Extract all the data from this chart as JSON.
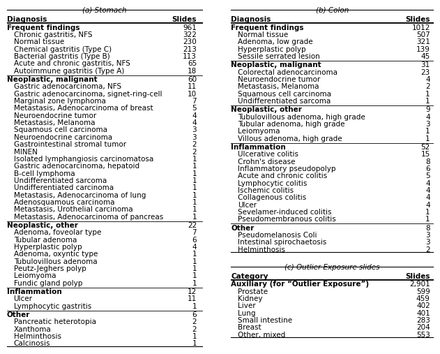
{
  "title_a": "(a) Stomach",
  "title_b": "(b) Colon",
  "title_c": "(c) Outlier Exposure slides",
  "stomach_header": [
    "Diagnosis",
    "Slides"
  ],
  "colon_header": [
    "Diagnosis",
    "Slides"
  ],
  "outlier_header": [
    "Category",
    "Slides"
  ],
  "stomach_data": [
    {
      "label": "Frequent findings",
      "value": "961",
      "indent": false,
      "bold": true,
      "separator_before": true
    },
    {
      "label": "Chronic gastritis, NFS",
      "value": "322",
      "indent": true,
      "bold": false,
      "separator_before": false
    },
    {
      "label": "Normal tissue",
      "value": "230",
      "indent": true,
      "bold": false,
      "separator_before": false
    },
    {
      "label": "Chemical gastritis (Type C)",
      "value": "213",
      "indent": true,
      "bold": false,
      "separator_before": false
    },
    {
      "label": "Bacterial gastritis (Type B)",
      "value": "113",
      "indent": true,
      "bold": false,
      "separator_before": false
    },
    {
      "label": "Acute and chronic gastritis, NFS",
      "value": "65",
      "indent": true,
      "bold": false,
      "separator_before": false
    },
    {
      "label": "Autoimmune gastritis (Type A)",
      "value": "18",
      "indent": true,
      "bold": false,
      "separator_before": false
    },
    {
      "label": "Neoplastic, malignant",
      "value": "60",
      "indent": false,
      "bold": true,
      "separator_before": true
    },
    {
      "label": "Gastric adenocarcinoma, NFS",
      "value": "11",
      "indent": true,
      "bold": false,
      "separator_before": false
    },
    {
      "label": "Gastric adenocarcinoma, signet-ring-cell",
      "value": "10",
      "indent": true,
      "bold": false,
      "separator_before": false
    },
    {
      "label": "Marginal zone lymphoma",
      "value": "7",
      "indent": true,
      "bold": false,
      "separator_before": false
    },
    {
      "label": "Metastasis, Adenocarcinoma of breast",
      "value": "5",
      "indent": true,
      "bold": false,
      "separator_before": false
    },
    {
      "label": "Neuroendocrine tumor",
      "value": "4",
      "indent": true,
      "bold": false,
      "separator_before": false
    },
    {
      "label": "Metastasis, Melanoma",
      "value": "4",
      "indent": true,
      "bold": false,
      "separator_before": false
    },
    {
      "label": "Squamous cell carcinoma",
      "value": "3",
      "indent": true,
      "bold": false,
      "separator_before": false
    },
    {
      "label": "Neuroendocrine carcinoma",
      "value": "3",
      "indent": true,
      "bold": false,
      "separator_before": false
    },
    {
      "label": "Gastrointestinal stromal tumor",
      "value": "2",
      "indent": true,
      "bold": false,
      "separator_before": false
    },
    {
      "label": "MINEN",
      "value": "2",
      "indent": true,
      "bold": false,
      "separator_before": false
    },
    {
      "label": "Isolated lymphangiosis carcinomatosa",
      "value": "1",
      "indent": true,
      "bold": false,
      "separator_before": false
    },
    {
      "label": "Gastric adenocarcinoma, hepatoid",
      "value": "1",
      "indent": true,
      "bold": false,
      "separator_before": false
    },
    {
      "label": "B-cell lymphoma",
      "value": "1",
      "indent": true,
      "bold": false,
      "separator_before": false
    },
    {
      "label": "Undifferentiated sarcoma",
      "value": "1",
      "indent": true,
      "bold": false,
      "separator_before": false
    },
    {
      "label": "Undifferentiated carcinoma",
      "value": "1",
      "indent": true,
      "bold": false,
      "separator_before": false
    },
    {
      "label": "Metastasis, Adenocarcinoma of lung",
      "value": "1",
      "indent": true,
      "bold": false,
      "separator_before": false
    },
    {
      "label": "Adenosquamous carcinoma",
      "value": "1",
      "indent": true,
      "bold": false,
      "separator_before": false
    },
    {
      "label": "Metastasis, Urothelial carcinoma",
      "value": "1",
      "indent": true,
      "bold": false,
      "separator_before": false
    },
    {
      "label": "Metastasis, Adenocarcinoma of pancreas",
      "value": "1",
      "indent": true,
      "bold": false,
      "separator_before": false
    },
    {
      "label": "Neoplastic, other",
      "value": "22",
      "indent": false,
      "bold": true,
      "separator_before": true
    },
    {
      "label": "Adenoma, foveolar type",
      "value": "7",
      "indent": true,
      "bold": false,
      "separator_before": false
    },
    {
      "label": "Tubular adenoma",
      "value": "6",
      "indent": true,
      "bold": false,
      "separator_before": false
    },
    {
      "label": "Hyperplastic polyp",
      "value": "4",
      "indent": true,
      "bold": false,
      "separator_before": false
    },
    {
      "label": "Adenoma, oxyntic type",
      "value": "1",
      "indent": true,
      "bold": false,
      "separator_before": false
    },
    {
      "label": "Tubulovillous adenoma",
      "value": "1",
      "indent": true,
      "bold": false,
      "separator_before": false
    },
    {
      "label": "Peutz-Jeghers polyp",
      "value": "1",
      "indent": true,
      "bold": false,
      "separator_before": false
    },
    {
      "label": "Leiomyoma",
      "value": "1",
      "indent": true,
      "bold": false,
      "separator_before": false
    },
    {
      "label": "Fundic gland polyp",
      "value": "1",
      "indent": true,
      "bold": false,
      "separator_before": false
    },
    {
      "label": "Inflammation",
      "value": "12",
      "indent": false,
      "bold": true,
      "separator_before": true
    },
    {
      "label": "Ulcer",
      "value": "11",
      "indent": true,
      "bold": false,
      "separator_before": false
    },
    {
      "label": "Lymphocytic gastritis",
      "value": "1",
      "indent": true,
      "bold": false,
      "separator_before": false
    },
    {
      "label": "Other",
      "value": "6",
      "indent": false,
      "bold": true,
      "separator_before": true
    },
    {
      "label": "Pancreatic heterotopia",
      "value": "2",
      "indent": true,
      "bold": false,
      "separator_before": false
    },
    {
      "label": "Xanthoma",
      "value": "2",
      "indent": true,
      "bold": false,
      "separator_before": false
    },
    {
      "label": "Helminthosis",
      "value": "1",
      "indent": true,
      "bold": false,
      "separator_before": false
    },
    {
      "label": "Calcinosis",
      "value": "1",
      "indent": true,
      "bold": false,
      "separator_before": false
    }
  ],
  "colon_data": [
    {
      "label": "Frequent findings",
      "value": "1012",
      "indent": false,
      "bold": true,
      "separator_before": true
    },
    {
      "label": "Normal tissue",
      "value": "507",
      "indent": true,
      "bold": false,
      "separator_before": false
    },
    {
      "label": "Adenoma, low grade",
      "value": "321",
      "indent": true,
      "bold": false,
      "separator_before": false
    },
    {
      "label": "Hyperplastic polyp",
      "value": "139",
      "indent": true,
      "bold": false,
      "separator_before": false
    },
    {
      "label": "Sessile serrated lesion",
      "value": "45",
      "indent": true,
      "bold": false,
      "separator_before": false
    },
    {
      "label": "Neoplastic, malignant",
      "value": "31",
      "indent": false,
      "bold": true,
      "separator_before": true
    },
    {
      "label": "Colorectal adenocarcinoma",
      "value": "23",
      "indent": true,
      "bold": false,
      "separator_before": false
    },
    {
      "label": "Neuroendocrine tumor",
      "value": "4",
      "indent": true,
      "bold": false,
      "separator_before": false
    },
    {
      "label": "Metastasis, Melanoma",
      "value": "2",
      "indent": true,
      "bold": false,
      "separator_before": false
    },
    {
      "label": "Squamous cell carcinoma",
      "value": "1",
      "indent": true,
      "bold": false,
      "separator_before": false
    },
    {
      "label": "Undifferentiated sarcoma",
      "value": "1",
      "indent": true,
      "bold": false,
      "separator_before": false
    },
    {
      "label": "Neoplastic, other",
      "value": "9",
      "indent": false,
      "bold": true,
      "separator_before": true
    },
    {
      "label": "Tubulovillous adenoma, high grade",
      "value": "4",
      "indent": true,
      "bold": false,
      "separator_before": false
    },
    {
      "label": "Tubular adenoma, high grade",
      "value": "3",
      "indent": true,
      "bold": false,
      "separator_before": false
    },
    {
      "label": "Leiomyoma",
      "value": "1",
      "indent": true,
      "bold": false,
      "separator_before": false
    },
    {
      "label": "Villous adenoma, high grade",
      "value": "1",
      "indent": true,
      "bold": false,
      "separator_before": false
    },
    {
      "label": "Inflammation",
      "value": "52",
      "indent": false,
      "bold": true,
      "separator_before": true
    },
    {
      "label": "Ulcerative colitis",
      "value": "15",
      "indent": true,
      "bold": false,
      "separator_before": false
    },
    {
      "label": "Crohn's disease",
      "value": "8",
      "indent": true,
      "bold": false,
      "separator_before": false
    },
    {
      "label": "Inflammatory pseudopolyp",
      "value": "6",
      "indent": true,
      "bold": false,
      "separator_before": false
    },
    {
      "label": "Acute and chronic colitis",
      "value": "5",
      "indent": true,
      "bold": false,
      "separator_before": false
    },
    {
      "label": "Lymphocytic colitis",
      "value": "4",
      "indent": true,
      "bold": false,
      "separator_before": false
    },
    {
      "label": "Ischemic colitis",
      "value": "4",
      "indent": true,
      "bold": false,
      "separator_before": false
    },
    {
      "label": "Collagenous colitis",
      "value": "4",
      "indent": true,
      "bold": false,
      "separator_before": false
    },
    {
      "label": "Ulcer",
      "value": "4",
      "indent": true,
      "bold": false,
      "separator_before": false
    },
    {
      "label": "Sevelamer-induced colitis",
      "value": "1",
      "indent": true,
      "bold": false,
      "separator_before": false
    },
    {
      "label": "Pseudomembranous colitis",
      "value": "1",
      "indent": true,
      "bold": false,
      "separator_before": false
    },
    {
      "label": "Other",
      "value": "8",
      "indent": false,
      "bold": true,
      "separator_before": true
    },
    {
      "label": "Pseudomelanosis Coli",
      "value": "3",
      "indent": true,
      "bold": false,
      "separator_before": false
    },
    {
      "label": "Intestinal spirochaetosis",
      "value": "3",
      "indent": true,
      "bold": false,
      "separator_before": false
    },
    {
      "label": "Helminthosis",
      "value": "2",
      "indent": true,
      "bold": false,
      "separator_before": false
    }
  ],
  "outlier_data": [
    {
      "label": "Auxiliary (for “Outlier Exposure”)",
      "value": "2,901",
      "indent": false,
      "bold": true,
      "separator_before": true
    },
    {
      "label": "Prostate",
      "value": "599",
      "indent": true,
      "bold": false,
      "separator_before": false
    },
    {
      "label": "Kidney",
      "value": "459",
      "indent": true,
      "bold": false,
      "separator_before": false
    },
    {
      "label": "Liver",
      "value": "402",
      "indent": true,
      "bold": false,
      "separator_before": false
    },
    {
      "label": "Lung",
      "value": "401",
      "indent": true,
      "bold": false,
      "separator_before": false
    },
    {
      "label": "Small intestine",
      "value": "283",
      "indent": true,
      "bold": false,
      "separator_before": false
    },
    {
      "label": "Breast",
      "value": "204",
      "indent": true,
      "bold": false,
      "separator_before": false
    },
    {
      "label": "Other, mixed",
      "value": "553",
      "indent": true,
      "bold": false,
      "separator_before": false
    }
  ],
  "font_size": 7.5,
  "indent_size": 0.015,
  "bg_color": "#ffffff",
  "line_color": "#000000"
}
